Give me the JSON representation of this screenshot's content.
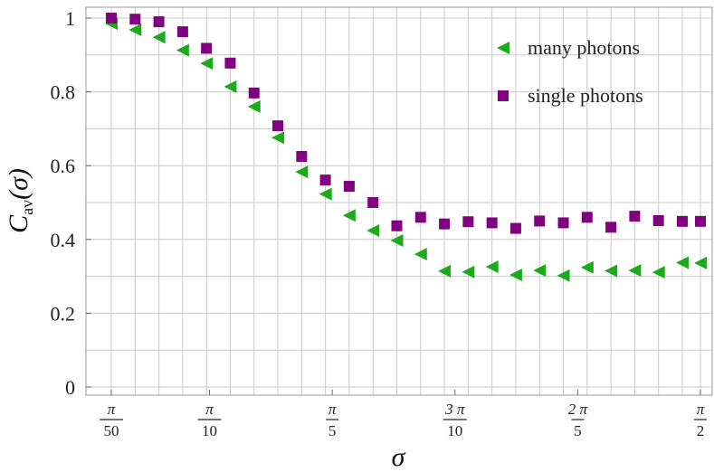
{
  "chart_data": {
    "type": "scatter",
    "xlabel": "σ",
    "ylabel": {
      "main": "C",
      "sub": "av",
      "arg": "(σ)"
    },
    "xlim": [
      0.0,
      1.6
    ],
    "ylim": [
      0,
      1.0
    ],
    "grid": true,
    "legend_position": "top-right",
    "y_ticks": [
      {
        "value": 0,
        "label": "0"
      },
      {
        "value": 0.2,
        "label": "0.2"
      },
      {
        "value": 0.4,
        "label": "0.4"
      },
      {
        "value": 0.6,
        "label": "0.6"
      },
      {
        "value": 0.8,
        "label": "0.8"
      },
      {
        "value": 1.0,
        "label": "1"
      }
    ],
    "x_ticks": [
      {
        "value": 0.0628,
        "num": "π",
        "den": "50"
      },
      {
        "value": 0.3142,
        "num": "π",
        "den": "10"
      },
      {
        "value": 0.6283,
        "num": "π",
        "den": "5"
      },
      {
        "value": 0.9425,
        "num": "3 π",
        "den": "10"
      },
      {
        "value": 1.2566,
        "num": "2 π",
        "den": "5"
      },
      {
        "value": 1.5708,
        "num": "π",
        "den": "2"
      }
    ],
    "series": [
      {
        "name": "many photons",
        "marker": "triangle-left",
        "color": "#1aaa1a",
        "x": [
          0.0628,
          0.1237,
          0.1846,
          0.2455,
          0.3064,
          0.3673,
          0.4282,
          0.4891,
          0.55,
          0.6109,
          0.6718,
          0.7327,
          0.7936,
          0.8545,
          0.9154,
          0.9763,
          1.0372,
          1.0981,
          1.159,
          1.2199,
          1.2808,
          1.3417,
          1.4026,
          1.4635,
          1.5244,
          1.5708
        ],
        "values": [
          0.985,
          0.968,
          0.948,
          0.913,
          0.877,
          0.814,
          0.76,
          0.676,
          0.583,
          0.523,
          0.465,
          0.424,
          0.397,
          0.36,
          0.314,
          0.312,
          0.326,
          0.304,
          0.316,
          0.302,
          0.324,
          0.315,
          0.316,
          0.311,
          0.337,
          0.336
        ]
      },
      {
        "name": "single photons",
        "marker": "square",
        "color": "#800080",
        "x": [
          0.0628,
          0.1237,
          0.1846,
          0.2455,
          0.3064,
          0.3673,
          0.4282,
          0.4891,
          0.55,
          0.6109,
          0.6718,
          0.7327,
          0.7936,
          0.8545,
          0.9154,
          0.9763,
          1.0372,
          1.0981,
          1.159,
          1.2199,
          1.2808,
          1.3417,
          1.4026,
          1.4635,
          1.5244,
          1.5708
        ],
        "values": [
          1.0,
          0.997,
          0.99,
          0.963,
          0.918,
          0.878,
          0.797,
          0.708,
          0.625,
          0.561,
          0.544,
          0.5,
          0.437,
          0.46,
          0.442,
          0.448,
          0.445,
          0.43,
          0.45,
          0.445,
          0.46,
          0.433,
          0.463,
          0.451,
          0.449,
          0.449
        ]
      }
    ]
  }
}
